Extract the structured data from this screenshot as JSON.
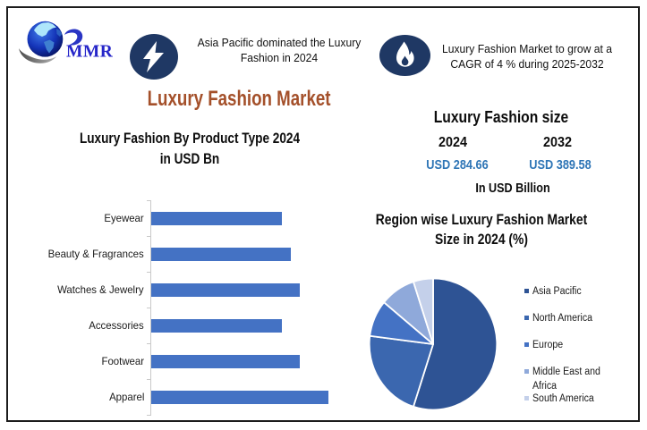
{
  "accent_colors": {
    "badge_circle": "#1F3864",
    "title_brown": "#A4502A",
    "usd_value_blue": "#2E75B6",
    "bar_blue": "#4472C4"
  },
  "header": {
    "logo_text": "MMR",
    "logo_icon": "globe-icon",
    "badge1": {
      "icon": "lightning-icon",
      "text": "Asia Pacific dominated the Luxury\nFashion in 2024"
    },
    "badge2": {
      "icon": "flame-icon",
      "text": "Luxury Fashion Market to grow at a\nCAGR of 4 % during 2025-2032"
    },
    "title": "Luxury Fashion Market"
  },
  "market_size": {
    "title": "Luxury Fashion size",
    "years": [
      {
        "year": "2024",
        "value": "USD 284.66"
      },
      {
        "year": "2032",
        "value": "USD 389.58"
      }
    ],
    "unit_note": "In USD Billion"
  },
  "chart_data": [
    {
      "type": "bar",
      "orientation": "horizontal",
      "title": "Luxury Fashion By Product Type 2024\nin USD Bn",
      "categories": [
        "Eyewear",
        "Beauty & Fragrances",
        "Watches & Jewelry",
        "Accessories",
        "Footwear",
        "Apparel"
      ],
      "values": [
        42,
        45,
        48,
        42,
        48,
        57
      ],
      "xlabel": "",
      "ylabel": "",
      "xlim": [
        0,
        60
      ],
      "grid": false,
      "bar_color": "#4472C4"
    },
    {
      "type": "pie",
      "title": "Region wise Luxury Fashion Market\nSize in 2024 (%)",
      "labels": [
        "Asia Pacific",
        "North America",
        "Europe",
        "Middle East and Africa",
        "South America"
      ],
      "values": [
        55,
        22,
        9,
        9,
        5
      ],
      "colors": [
        "#2E5394",
        "#3B67AF",
        "#4472C4",
        "#8FA9DA",
        "#C4D0EA"
      ],
      "legend_position": "right"
    }
  ]
}
